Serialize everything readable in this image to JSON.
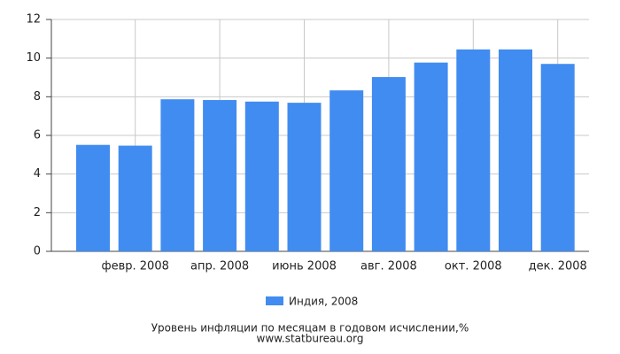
{
  "chart_data": {
    "type": "bar",
    "title": "Уровень инфляции по месяцам в годовом исчислении,%",
    "subtitle": "www.statbureau.org",
    "categories": [
      null,
      "февр. 2008",
      null,
      "апр. 2008",
      null,
      "июнь 2008",
      null,
      "авг. 2008",
      null,
      "окт. 2008",
      null,
      "дек. 2008"
    ],
    "series": [
      {
        "name": "Индия, 2008",
        "color": "#418cf0",
        "values": [
          5.51,
          5.47,
          7.87,
          7.83,
          7.75,
          7.69,
          8.33,
          9.02,
          9.77,
          10.45,
          10.45,
          9.7
        ]
      }
    ],
    "ylim": [
      0,
      12
    ],
    "yticks": [
      0,
      2,
      4,
      6,
      8,
      10,
      12
    ],
    "grid": true
  }
}
